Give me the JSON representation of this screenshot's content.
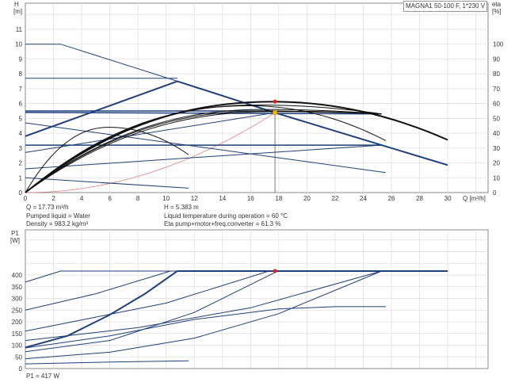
{
  "title": "MAGNA1 50-100 F, 1*230 V",
  "colors": {
    "blue": "#1f3f7a",
    "black": "#111111",
    "system": "#e08080",
    "duty_red": "#e02020",
    "duty_yellow": "#f5b800",
    "grid": "#dddddd"
  },
  "info_top": [
    "Q = 17.73 m³/h",
    "Pumped liquid = Water",
    "Density = 983.2 kg/m³"
  ],
  "info_top2": [
    "H = 5.383 m",
    "Liquid temperature during operation = 60 °C",
    "Eta pump+motor+freq.converter = 61.3 %"
  ],
  "info_bottom": "P1 = 417 W",
  "chart_data": [
    {
      "type": "line",
      "ylabel": "H",
      "yunit": "[m]",
      "y2label": "eta",
      "y2unit": "[%]",
      "xlabel": "Q [m³/h]",
      "xlim": [
        0,
        32.9
      ],
      "ylim": [
        0,
        12.6
      ],
      "y2lim": [
        0,
        126
      ],
      "grid": true,
      "xticks": [
        "0",
        "2",
        "4",
        "6",
        "8",
        "10",
        "12",
        "14",
        "16",
        "18",
        "20",
        "22",
        "24",
        "26",
        "28",
        "30"
      ],
      "yticks": [
        "0",
        "1",
        "2",
        "3",
        "4",
        "5",
        "6",
        "7",
        "8",
        "9",
        "10",
        "11"
      ],
      "y2ticks": [
        "0",
        "10",
        "20",
        "30",
        "40",
        "50",
        "60",
        "70",
        "80",
        "90",
        "100"
      ],
      "blue_lines": [
        {
          "w": 1,
          "pts": [
            [
              0,
              10
            ],
            [
              2.5,
              10
            ],
            [
              10.8,
              7.5
            ]
          ]
        },
        {
          "w": 2,
          "pts": [
            [
              10.8,
              7.5
            ],
            [
              17.73,
              5.383
            ],
            [
              25.3,
              3.2
            ],
            [
              30,
              1.85
            ]
          ]
        },
        {
          "w": 1,
          "pts": [
            [
              0,
              7.7
            ],
            [
              10.8,
              7.7
            ]
          ]
        },
        {
          "w": 2,
          "pts": [
            [
              0,
              3.8
            ],
            [
              10.8,
              7.5
            ]
          ]
        },
        {
          "w": 1.5,
          "pts": [
            [
              0,
              5.5
            ],
            [
              17.73,
              5.5
            ]
          ]
        },
        {
          "w": 1.5,
          "pts": [
            [
              0,
              5.4
            ],
            [
              25.3,
              5.3
            ]
          ]
        },
        {
          "w": 1,
          "pts": [
            [
              0,
              4.7
            ],
            [
              25.6,
              1.35
            ]
          ]
        },
        {
          "w": 1,
          "pts": [
            [
              0,
              2.7
            ],
            [
              17.73,
              5.383
            ]
          ]
        },
        {
          "w": 1.5,
          "pts": [
            [
              0,
              3.2
            ],
            [
              25.3,
              3.2
            ]
          ]
        },
        {
          "w": 1,
          "pts": [
            [
              0,
              1.6
            ],
            [
              25.3,
              3.2
            ]
          ]
        },
        {
          "w": 1,
          "pts": [
            [
              0,
              1.0
            ],
            [
              11.6,
              0.3
            ]
          ]
        }
      ],
      "eta_curves": [
        {
          "w": 2,
          "peak": [
            17.7,
            6.12
          ],
          "end": [
            30,
            3.55
          ]
        },
        {
          "w": 1,
          "peak": [
            16,
            5.85
          ],
          "end": [
            25.6,
            3.5
          ]
        },
        {
          "w": 1,
          "peak": [
            17,
            5.6
          ],
          "end": [
            25.3,
            5.3
          ]
        },
        {
          "w": 1,
          "peak": [
            16.5,
            5.9
          ],
          "end": [
            25.3,
            5.3
          ]
        },
        {
          "w": 1,
          "peak": [
            17,
            5.5
          ],
          "end": [
            25.3,
            5.3
          ]
        },
        {
          "w": 1,
          "peak": [
            17.5,
            5.45
          ],
          "end": [
            25.3,
            5.3
          ]
        },
        {
          "w": 1,
          "peak": [
            6,
            4.4
          ],
          "end": [
            11.6,
            2.55
          ]
        }
      ],
      "system_curve": {
        "Q": 17.73,
        "H": 5.383
      },
      "duty_point": {
        "Q": 17.73,
        "H": 5.383
      },
      "eta_point": {
        "Q": 17.73,
        "eta": 61.3
      }
    },
    {
      "type": "line",
      "ylabel": "P1",
      "yunit": "[W]",
      "xlim": [
        0,
        32.9
      ],
      "ylim": [
        0,
        640
      ],
      "grid": true,
      "yticks": [
        "0",
        "50",
        "100",
        "150",
        "200",
        "250",
        "300",
        "350",
        "400"
      ],
      "lines": [
        {
          "w": 1,
          "pts": [
            [
              0,
              370
            ],
            [
              2.5,
              417
            ],
            [
              30,
              417
            ]
          ]
        },
        {
          "w": 2,
          "pts": [
            [
              10.8,
              417
            ],
            [
              30,
              417
            ]
          ]
        },
        {
          "w": 1,
          "pts": [
            [
              0,
              250
            ],
            [
              5,
              320
            ],
            [
              10.3,
              417
            ]
          ]
        },
        {
          "w": 2,
          "pts": [
            [
              0,
              90
            ],
            [
              3,
              140
            ],
            [
              6,
              230
            ],
            [
              8.5,
              320
            ],
            [
              10.8,
              417
            ]
          ]
        },
        {
          "w": 1,
          "pts": [
            [
              0,
              160
            ],
            [
              5,
              220
            ],
            [
              10,
              280
            ],
            [
              17.3,
              417
            ]
          ]
        },
        {
          "w": 1,
          "pts": [
            [
              0,
              72
            ],
            [
              6,
              120
            ],
            [
              12,
              240
            ],
            [
              17.7,
              410
            ]
          ]
        },
        {
          "w": 1,
          "pts": [
            [
              0,
              120
            ],
            [
              8,
              175
            ],
            [
              16,
              260
            ],
            [
              25.3,
              417
            ]
          ]
        },
        {
          "w": 1,
          "pts": [
            [
              0,
              42
            ],
            [
              6,
              70
            ],
            [
              12,
              130
            ],
            [
              18,
              235
            ],
            [
              25.3,
              417
            ]
          ]
        },
        {
          "w": 1,
          "pts": [
            [
              0,
              88
            ],
            [
              6,
              140
            ],
            [
              12,
              210
            ],
            [
              18,
              255
            ],
            [
              22,
              265
            ],
            [
              25.6,
              265
            ]
          ]
        },
        {
          "w": 1,
          "pts": [
            [
              0,
              20
            ],
            [
              6,
              28
            ],
            [
              11.6,
              33
            ]
          ]
        }
      ],
      "duty_point": {
        "Q": 17.73,
        "P1": 417
      }
    }
  ]
}
